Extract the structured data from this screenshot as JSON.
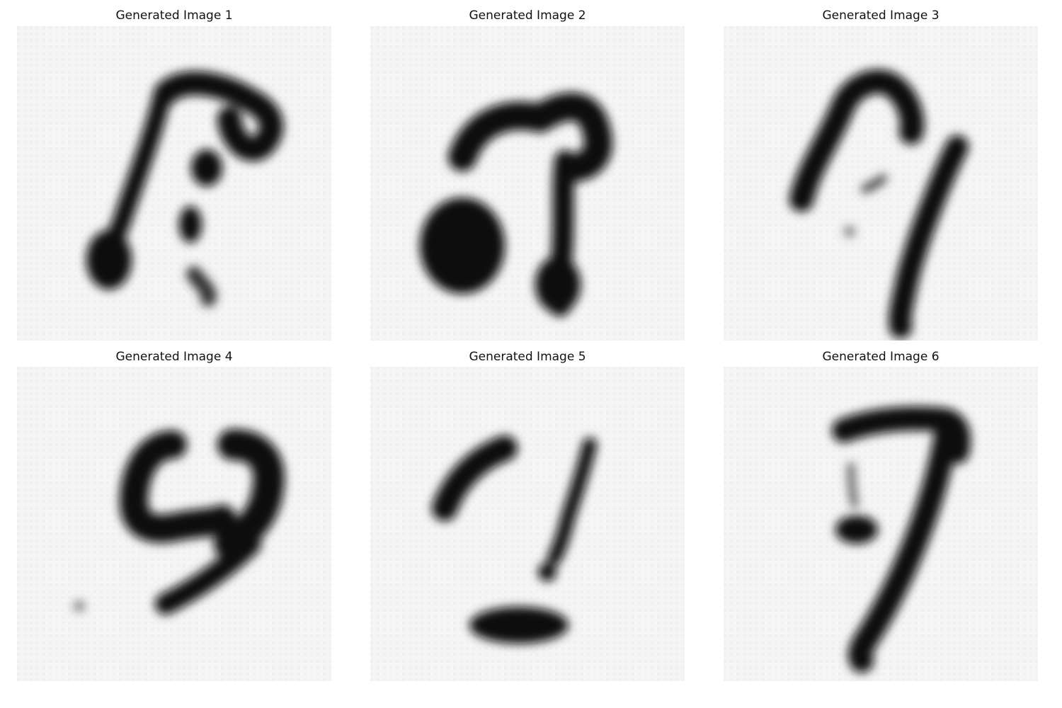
{
  "figure": {
    "panels": [
      {
        "title": "Generated Image 1",
        "ink_color": "#0d0d0d"
      },
      {
        "title": "Generated Image 2",
        "ink_color": "#0d0d0d"
      },
      {
        "title": "Generated Image 3",
        "ink_color": "#0d0d0d"
      },
      {
        "title": "Generated Image 4",
        "ink_color": "#0d0d0d"
      },
      {
        "title": "Generated Image 5",
        "ink_color": "#0d0d0d"
      },
      {
        "title": "Generated Image 6",
        "ink_color": "#0d0d0d"
      }
    ],
    "background_color": "#f4f4f4",
    "grid_texture_color": "#e6e6e6"
  }
}
